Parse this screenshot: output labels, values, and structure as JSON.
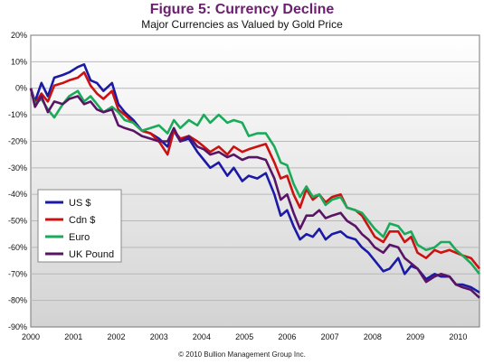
{
  "chart_data": {
    "type": "line",
    "title": "Figure 5: Currency Decline",
    "subtitle": "Major Currencies as Valued by Gold Price",
    "footer": "© 2010 Bullion Management Group Inc.",
    "xlabel": "",
    "ylabel": "",
    "xlim": [
      2000,
      2010.5
    ],
    "ylim": [
      -90,
      20
    ],
    "x_ticks": [
      "2000",
      "2001",
      "2002",
      "2003",
      "2004",
      "2005",
      "2006",
      "2007",
      "2008",
      "2009",
      "2010"
    ],
    "y_ticks": [
      "20%",
      "10%",
      "0%",
      "-10%",
      "-20%",
      "-30%",
      "-40%",
      "-50%",
      "-60%",
      "-70%",
      "-80%",
      "-90%"
    ],
    "grid": true,
    "legend_position": "left-middle",
    "series": [
      {
        "name": "US $",
        "color": "#1a1aa6",
        "points": [
          [
            2000.0,
            0
          ],
          [
            2000.1,
            -5
          ],
          [
            2000.25,
            2
          ],
          [
            2000.4,
            -3
          ],
          [
            2000.55,
            4
          ],
          [
            2000.75,
            5
          ],
          [
            2000.9,
            6
          ],
          [
            2001.1,
            8
          ],
          [
            2001.25,
            9
          ],
          [
            2001.4,
            3
          ],
          [
            2001.55,
            2
          ],
          [
            2001.7,
            -1
          ],
          [
            2001.9,
            2
          ],
          [
            2002.05,
            -6
          ],
          [
            2002.2,
            -9
          ],
          [
            2002.4,
            -12
          ],
          [
            2002.6,
            -16
          ],
          [
            2002.8,
            -17
          ],
          [
            2003.0,
            -19
          ],
          [
            2003.2,
            -22
          ],
          [
            2003.35,
            -16
          ],
          [
            2003.5,
            -20
          ],
          [
            2003.7,
            -19
          ],
          [
            2003.9,
            -24
          ],
          [
            2004.05,
            -27
          ],
          [
            2004.2,
            -30
          ],
          [
            2004.4,
            -28
          ],
          [
            2004.6,
            -33
          ],
          [
            2004.75,
            -30
          ],
          [
            2004.95,
            -35
          ],
          [
            2005.1,
            -33
          ],
          [
            2005.3,
            -34
          ],
          [
            2005.5,
            -32
          ],
          [
            2005.7,
            -40
          ],
          [
            2005.85,
            -48
          ],
          [
            2006.0,
            -46
          ],
          [
            2006.15,
            -52
          ],
          [
            2006.3,
            -57
          ],
          [
            2006.45,
            -55
          ],
          [
            2006.6,
            -56
          ],
          [
            2006.75,
            -53
          ],
          [
            2006.9,
            -57
          ],
          [
            2007.05,
            -55
          ],
          [
            2007.25,
            -54
          ],
          [
            2007.4,
            -56
          ],
          [
            2007.6,
            -57
          ],
          [
            2007.75,
            -60
          ],
          [
            2007.9,
            -62
          ],
          [
            2008.05,
            -65
          ],
          [
            2008.25,
            -69
          ],
          [
            2008.4,
            -68
          ],
          [
            2008.6,
            -64
          ],
          [
            2008.75,
            -70
          ],
          [
            2008.9,
            -67
          ],
          [
            2009.05,
            -68
          ],
          [
            2009.25,
            -72
          ],
          [
            2009.45,
            -70
          ],
          [
            2009.6,
            -71
          ],
          [
            2009.8,
            -71
          ],
          [
            2009.95,
            -74
          ],
          [
            2010.1,
            -74
          ],
          [
            2010.3,
            -75
          ],
          [
            2010.5,
            -77
          ]
        ]
      },
      {
        "name": "Cdn $",
        "color": "#cc1111",
        "points": [
          [
            2000.0,
            0
          ],
          [
            2000.1,
            -6
          ],
          [
            2000.25,
            -2
          ],
          [
            2000.4,
            -5
          ],
          [
            2000.55,
            1
          ],
          [
            2000.75,
            2
          ],
          [
            2000.9,
            3
          ],
          [
            2001.1,
            4
          ],
          [
            2001.25,
            6
          ],
          [
            2001.4,
            1
          ],
          [
            2001.55,
            -2
          ],
          [
            2001.7,
            -4
          ],
          [
            2001.9,
            -1
          ],
          [
            2002.05,
            -8
          ],
          [
            2002.2,
            -10
          ],
          [
            2002.4,
            -13
          ],
          [
            2002.6,
            -16
          ],
          [
            2002.8,
            -17
          ],
          [
            2003.0,
            -20
          ],
          [
            2003.2,
            -25
          ],
          [
            2003.35,
            -16
          ],
          [
            2003.5,
            -19
          ],
          [
            2003.7,
            -18
          ],
          [
            2003.9,
            -20
          ],
          [
            2004.05,
            -22
          ],
          [
            2004.2,
            -24
          ],
          [
            2004.4,
            -22
          ],
          [
            2004.6,
            -25
          ],
          [
            2004.75,
            -22
          ],
          [
            2004.95,
            -24
          ],
          [
            2005.1,
            -23
          ],
          [
            2005.3,
            -22
          ],
          [
            2005.5,
            -21
          ],
          [
            2005.7,
            -28
          ],
          [
            2005.85,
            -34
          ],
          [
            2006.0,
            -33
          ],
          [
            2006.15,
            -40
          ],
          [
            2006.3,
            -45
          ],
          [
            2006.45,
            -38
          ],
          [
            2006.6,
            -42
          ],
          [
            2006.75,
            -40
          ],
          [
            2006.9,
            -43
          ],
          [
            2007.05,
            -41
          ],
          [
            2007.25,
            -40
          ],
          [
            2007.4,
            -45
          ],
          [
            2007.6,
            -46
          ],
          [
            2007.75,
            -48
          ],
          [
            2007.9,
            -52
          ],
          [
            2008.05,
            -56
          ],
          [
            2008.25,
            -58
          ],
          [
            2008.4,
            -54
          ],
          [
            2008.6,
            -54
          ],
          [
            2008.75,
            -58
          ],
          [
            2008.9,
            -56
          ],
          [
            2009.05,
            -62
          ],
          [
            2009.25,
            -64
          ],
          [
            2009.45,
            -61
          ],
          [
            2009.6,
            -62
          ],
          [
            2009.8,
            -61
          ],
          [
            2009.95,
            -62
          ],
          [
            2010.1,
            -63
          ],
          [
            2010.3,
            -64
          ],
          [
            2010.5,
            -68
          ]
        ]
      },
      {
        "name": "Euro",
        "color": "#1aaa5a",
        "points": [
          [
            2000.0,
            0
          ],
          [
            2000.1,
            -6
          ],
          [
            2000.25,
            -4
          ],
          [
            2000.4,
            -8
          ],
          [
            2000.55,
            -11
          ],
          [
            2000.75,
            -6
          ],
          [
            2000.9,
            -3
          ],
          [
            2001.1,
            -1
          ],
          [
            2001.25,
            -5
          ],
          [
            2001.4,
            -3
          ],
          [
            2001.55,
            -6
          ],
          [
            2001.7,
            -9
          ],
          [
            2001.9,
            -7
          ],
          [
            2002.05,
            -9
          ],
          [
            2002.2,
            -12
          ],
          [
            2002.4,
            -13
          ],
          [
            2002.6,
            -16
          ],
          [
            2002.8,
            -15
          ],
          [
            2003.0,
            -14
          ],
          [
            2003.2,
            -17
          ],
          [
            2003.35,
            -12
          ],
          [
            2003.5,
            -15
          ],
          [
            2003.7,
            -12
          ],
          [
            2003.9,
            -14
          ],
          [
            2004.05,
            -10
          ],
          [
            2004.2,
            -13
          ],
          [
            2004.4,
            -10
          ],
          [
            2004.6,
            -13
          ],
          [
            2004.75,
            -12
          ],
          [
            2004.95,
            -13
          ],
          [
            2005.1,
            -18
          ],
          [
            2005.3,
            -17
          ],
          [
            2005.5,
            -17
          ],
          [
            2005.7,
            -22
          ],
          [
            2005.85,
            -28
          ],
          [
            2006.0,
            -29
          ],
          [
            2006.15,
            -36
          ],
          [
            2006.3,
            -41
          ],
          [
            2006.45,
            -37
          ],
          [
            2006.6,
            -41
          ],
          [
            2006.75,
            -40
          ],
          [
            2006.9,
            -44
          ],
          [
            2007.05,
            -42
          ],
          [
            2007.25,
            -41
          ],
          [
            2007.4,
            -45
          ],
          [
            2007.6,
            -46
          ],
          [
            2007.75,
            -47
          ],
          [
            2007.9,
            -50
          ],
          [
            2008.05,
            -53
          ],
          [
            2008.25,
            -56
          ],
          [
            2008.4,
            -51
          ],
          [
            2008.6,
            -52
          ],
          [
            2008.75,
            -55
          ],
          [
            2008.9,
            -54
          ],
          [
            2009.05,
            -59
          ],
          [
            2009.25,
            -61
          ],
          [
            2009.45,
            -60
          ],
          [
            2009.6,
            -58
          ],
          [
            2009.8,
            -58
          ],
          [
            2009.95,
            -61
          ],
          [
            2010.1,
            -63
          ],
          [
            2010.3,
            -66
          ],
          [
            2010.5,
            -70
          ]
        ]
      },
      {
        "name": "UK Pound",
        "color": "#5a1466",
        "points": [
          [
            2000.0,
            0
          ],
          [
            2000.1,
            -7
          ],
          [
            2000.25,
            -3
          ],
          [
            2000.4,
            -9
          ],
          [
            2000.55,
            -5
          ],
          [
            2000.75,
            -6
          ],
          [
            2000.9,
            -4
          ],
          [
            2001.1,
            -3
          ],
          [
            2001.25,
            -6
          ],
          [
            2001.4,
            -5
          ],
          [
            2001.55,
            -8
          ],
          [
            2001.7,
            -9
          ],
          [
            2001.9,
            -8
          ],
          [
            2002.05,
            -14
          ],
          [
            2002.2,
            -15
          ],
          [
            2002.4,
            -16
          ],
          [
            2002.6,
            -18
          ],
          [
            2002.8,
            -19
          ],
          [
            2003.0,
            -20
          ],
          [
            2003.2,
            -20
          ],
          [
            2003.35,
            -15
          ],
          [
            2003.5,
            -20
          ],
          [
            2003.7,
            -18
          ],
          [
            2003.9,
            -22
          ],
          [
            2004.05,
            -23
          ],
          [
            2004.2,
            -25
          ],
          [
            2004.4,
            -24
          ],
          [
            2004.6,
            -26
          ],
          [
            2004.75,
            -25
          ],
          [
            2004.95,
            -27
          ],
          [
            2005.1,
            -26
          ],
          [
            2005.3,
            -26
          ],
          [
            2005.5,
            -27
          ],
          [
            2005.7,
            -34
          ],
          [
            2005.85,
            -42
          ],
          [
            2006.0,
            -40
          ],
          [
            2006.15,
            -47
          ],
          [
            2006.3,
            -53
          ],
          [
            2006.45,
            -48
          ],
          [
            2006.6,
            -48
          ],
          [
            2006.75,
            -46
          ],
          [
            2006.9,
            -49
          ],
          [
            2007.05,
            -48
          ],
          [
            2007.25,
            -47
          ],
          [
            2007.4,
            -50
          ],
          [
            2007.6,
            -52
          ],
          [
            2007.75,
            -55
          ],
          [
            2007.9,
            -57
          ],
          [
            2008.05,
            -60
          ],
          [
            2008.25,
            -62
          ],
          [
            2008.4,
            -59
          ],
          [
            2008.6,
            -60
          ],
          [
            2008.75,
            -64
          ],
          [
            2008.9,
            -66
          ],
          [
            2009.05,
            -68
          ],
          [
            2009.25,
            -73
          ],
          [
            2009.45,
            -71
          ],
          [
            2009.6,
            -70
          ],
          [
            2009.8,
            -71
          ],
          [
            2009.95,
            -74
          ],
          [
            2010.1,
            -75
          ],
          [
            2010.3,
            -76
          ],
          [
            2010.5,
            -79
          ]
        ]
      }
    ]
  }
}
